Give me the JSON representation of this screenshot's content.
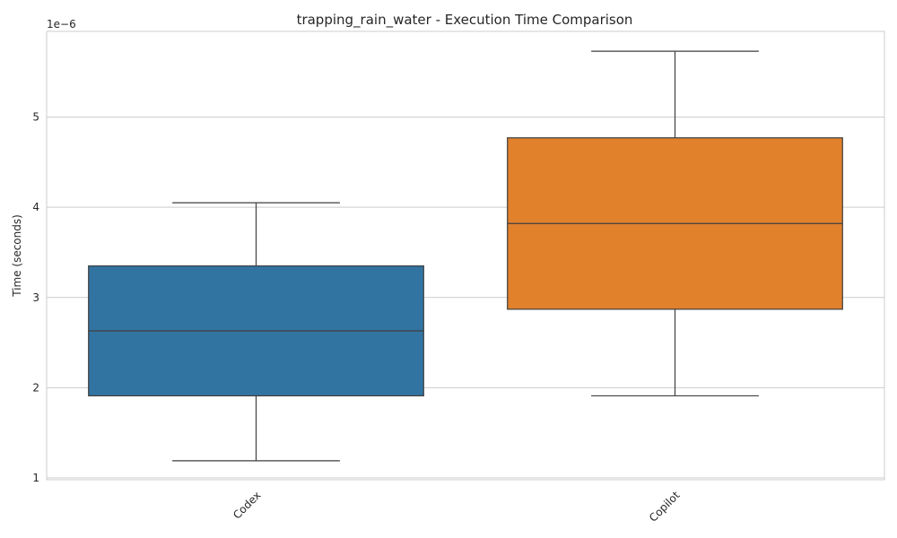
{
  "chart_data": {
    "type": "box",
    "title": "trapping_rain_water - Execution Time Comparison",
    "xlabel": "",
    "ylabel": "Time (seconds)",
    "y_offset_label": "1e−6",
    "ylim": [
      0.98,
      5.95
    ],
    "yticks": [
      1,
      2,
      3,
      4,
      5
    ],
    "grid": true,
    "categories": [
      "Codex",
      "Copilot"
    ],
    "series": [
      {
        "whisker_low": 1.19,
        "q1": 1.91,
        "median": 2.63,
        "q3": 3.35,
        "whisker_high": 4.05,
        "color": "#3274a1"
      },
      {
        "whisker_low": 1.91,
        "q1": 2.87,
        "median": 3.82,
        "q3": 4.77,
        "whisker_high": 5.73,
        "color": "#e1812c"
      }
    ]
  }
}
